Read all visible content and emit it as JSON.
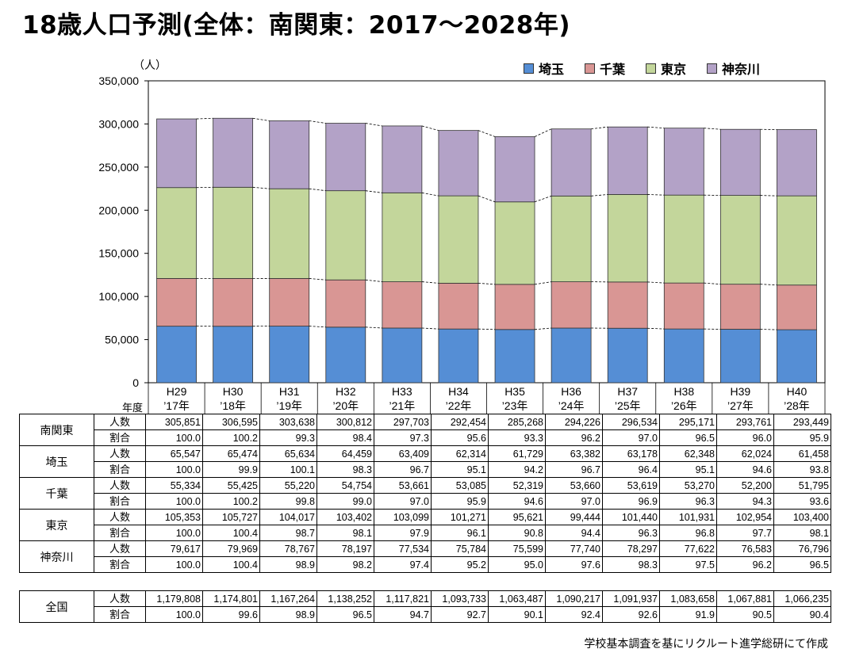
{
  "title": "18歳人口予測(全体：南関東：2017～2028年)",
  "unit_label": "（人）",
  "nendo_label": "年度",
  "source": "学校基本調査を基にリクルート進学総研にて作成",
  "legend": [
    {
      "name": "埼玉",
      "color": "#558ed5"
    },
    {
      "name": "千葉",
      "color": "#d99694"
    },
    {
      "name": "東京",
      "color": "#c3d69b"
    },
    {
      "name": "神奈川",
      "color": "#b3a2c7"
    }
  ],
  "chart_data": {
    "type": "bar",
    "stacked": true,
    "ylim": [
      0,
      350000
    ],
    "yticks": [
      "0",
      "50,000",
      "100,000",
      "150,000",
      "200,000",
      "250,000",
      "300,000",
      "350,000"
    ],
    "categories_top": [
      "H29",
      "H30",
      "H31",
      "H32",
      "H33",
      "H34",
      "H35",
      "H36",
      "H37",
      "H38",
      "H39",
      "H40"
    ],
    "categories_bottom": [
      "’17年",
      "’18年",
      "’19年",
      "’20年",
      "’21年",
      "’22年",
      "’23年",
      "’24年",
      "’25年",
      "’26年",
      "’27年",
      "’28年"
    ],
    "series": [
      {
        "name": "埼玉",
        "color": "#558ed5",
        "values": [
          65547,
          65474,
          65634,
          64459,
          63409,
          62314,
          61729,
          63382,
          63178,
          62348,
          62024,
          61458
        ]
      },
      {
        "name": "千葉",
        "color": "#d99694",
        "values": [
          55334,
          55425,
          55220,
          54754,
          53661,
          53085,
          52319,
          53660,
          53619,
          53270,
          52200,
          51795
        ]
      },
      {
        "name": "東京",
        "color": "#c3d69b",
        "values": [
          105353,
          105727,
          104017,
          103402,
          103099,
          101271,
          95621,
          99444,
          101440,
          101931,
          102954,
          103400
        ]
      },
      {
        "name": "神奈川",
        "color": "#b3a2c7",
        "values": [
          79617,
          79969,
          78767,
          78197,
          77534,
          75784,
          75599,
          77740,
          78297,
          77622,
          76583,
          76796
        ]
      }
    ],
    "grid": false,
    "legend_position": "top-right"
  },
  "table": {
    "groups": [
      {
        "region": "南関東",
        "rows": [
          {
            "metric": "人数",
            "values": [
              "305,851",
              "306,595",
              "303,638",
              "300,812",
              "297,703",
              "292,454",
              "285,268",
              "294,226",
              "296,534",
              "295,171",
              "293,761",
              "293,449"
            ]
          },
          {
            "metric": "割合",
            "values": [
              "100.0",
              "100.2",
              "99.3",
              "98.4",
              "97.3",
              "95.6",
              "93.3",
              "96.2",
              "97.0",
              "96.5",
              "96.0",
              "95.9"
            ]
          }
        ]
      },
      {
        "region": "埼玉",
        "rows": [
          {
            "metric": "人数",
            "values": [
              "65,547",
              "65,474",
              "65,634",
              "64,459",
              "63,409",
              "62,314",
              "61,729",
              "63,382",
              "63,178",
              "62,348",
              "62,024",
              "61,458"
            ]
          },
          {
            "metric": "割合",
            "values": [
              "100.0",
              "99.9",
              "100.1",
              "98.3",
              "96.7",
              "95.1",
              "94.2",
              "96.7",
              "96.4",
              "95.1",
              "94.6",
              "93.8"
            ]
          }
        ]
      },
      {
        "region": "千葉",
        "rows": [
          {
            "metric": "人数",
            "values": [
              "55,334",
              "55,425",
              "55,220",
              "54,754",
              "53,661",
              "53,085",
              "52,319",
              "53,660",
              "53,619",
              "53,270",
              "52,200",
              "51,795"
            ]
          },
          {
            "metric": "割合",
            "values": [
              "100.0",
              "100.2",
              "99.8",
              "99.0",
              "97.0",
              "95.9",
              "94.6",
              "97.0",
              "96.9",
              "96.3",
              "94.3",
              "93.6"
            ]
          }
        ]
      },
      {
        "region": "東京",
        "rows": [
          {
            "metric": "人数",
            "values": [
              "105,353",
              "105,727",
              "104,017",
              "103,402",
              "103,099",
              "101,271",
              "95,621",
              "99,444",
              "101,440",
              "101,931",
              "102,954",
              "103,400"
            ]
          },
          {
            "metric": "割合",
            "values": [
              "100.0",
              "100.4",
              "98.7",
              "98.1",
              "97.9",
              "96.1",
              "90.8",
              "94.4",
              "96.3",
              "96.8",
              "97.7",
              "98.1"
            ]
          }
        ]
      },
      {
        "region": "神奈川",
        "rows": [
          {
            "metric": "人数",
            "values": [
              "79,617",
              "79,969",
              "78,767",
              "78,197",
              "77,534",
              "75,784",
              "75,599",
              "77,740",
              "78,297",
              "77,622",
              "76,583",
              "76,796"
            ]
          },
          {
            "metric": "割合",
            "values": [
              "100.0",
              "100.4",
              "98.9",
              "98.2",
              "97.4",
              "95.2",
              "95.0",
              "97.6",
              "98.3",
              "97.5",
              "96.2",
              "96.5"
            ]
          }
        ]
      }
    ],
    "national": {
      "region": "全国",
      "rows": [
        {
          "metric": "人数",
          "values": [
            "1,179,808",
            "1,174,801",
            "1,167,264",
            "1,138,252",
            "1,117,821",
            "1,093,733",
            "1,063,487",
            "1,090,217",
            "1,091,937",
            "1,083,658",
            "1,067,881",
            "1,066,235"
          ]
        },
        {
          "metric": "割合",
          "values": [
            "100.0",
            "99.6",
            "98.9",
            "96.5",
            "94.7",
            "92.7",
            "90.1",
            "92.4",
            "92.6",
            "91.9",
            "90.5",
            "90.4"
          ]
        }
      ]
    }
  }
}
